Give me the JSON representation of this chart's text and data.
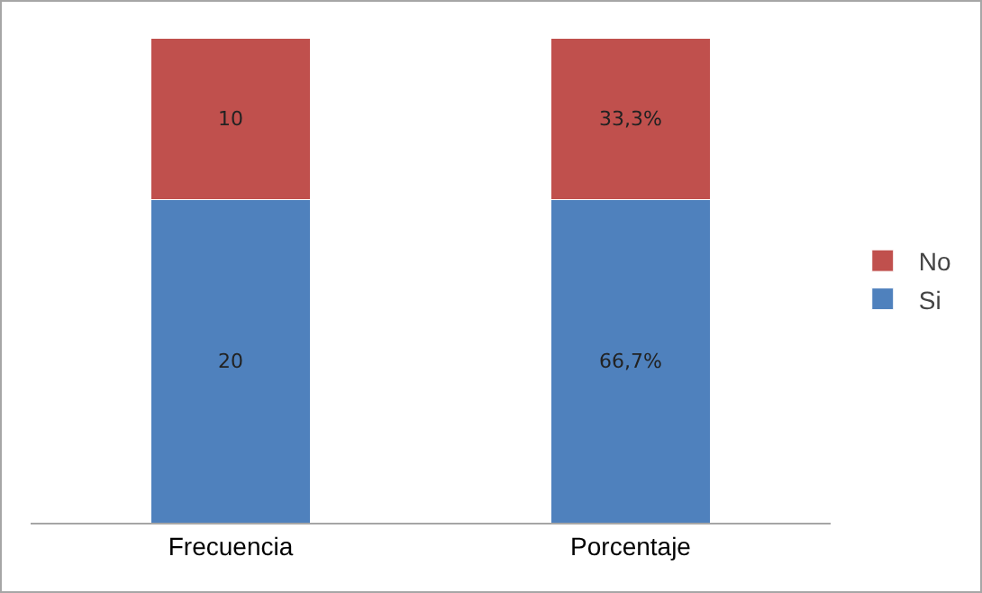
{
  "chart_data": {
    "type": "bar",
    "stacked": true,
    "categories": [
      "Frecuencia",
      "Porcentaje"
    ],
    "series": [
      {
        "name": "Si",
        "color": "#4f81bd",
        "values": [
          20,
          null
        ],
        "value_labels": [
          "20",
          null
        ]
      },
      {
        "name": "No",
        "color": "#c0504d",
        "values": [
          10,
          null
        ],
        "value_labels": [
          "10",
          null
        ]
      },
      {
        "color": "#4f81bd",
        "values": [
          null,
          66.7
        ],
        "value_labels": [
          null,
          "66,7%"
        ],
        "axis": "y2"
      },
      {
        "color": "#c0504d",
        "values": [
          null,
          33.3
        ],
        "value_labels": [
          null,
          "33,3%"
        ],
        "axis": "y2"
      }
    ],
    "ylim": [
      0,
      30
    ],
    "y2lim": [
      0,
      100
    ],
    "tick_labels": "x",
    "legend": "right"
  }
}
